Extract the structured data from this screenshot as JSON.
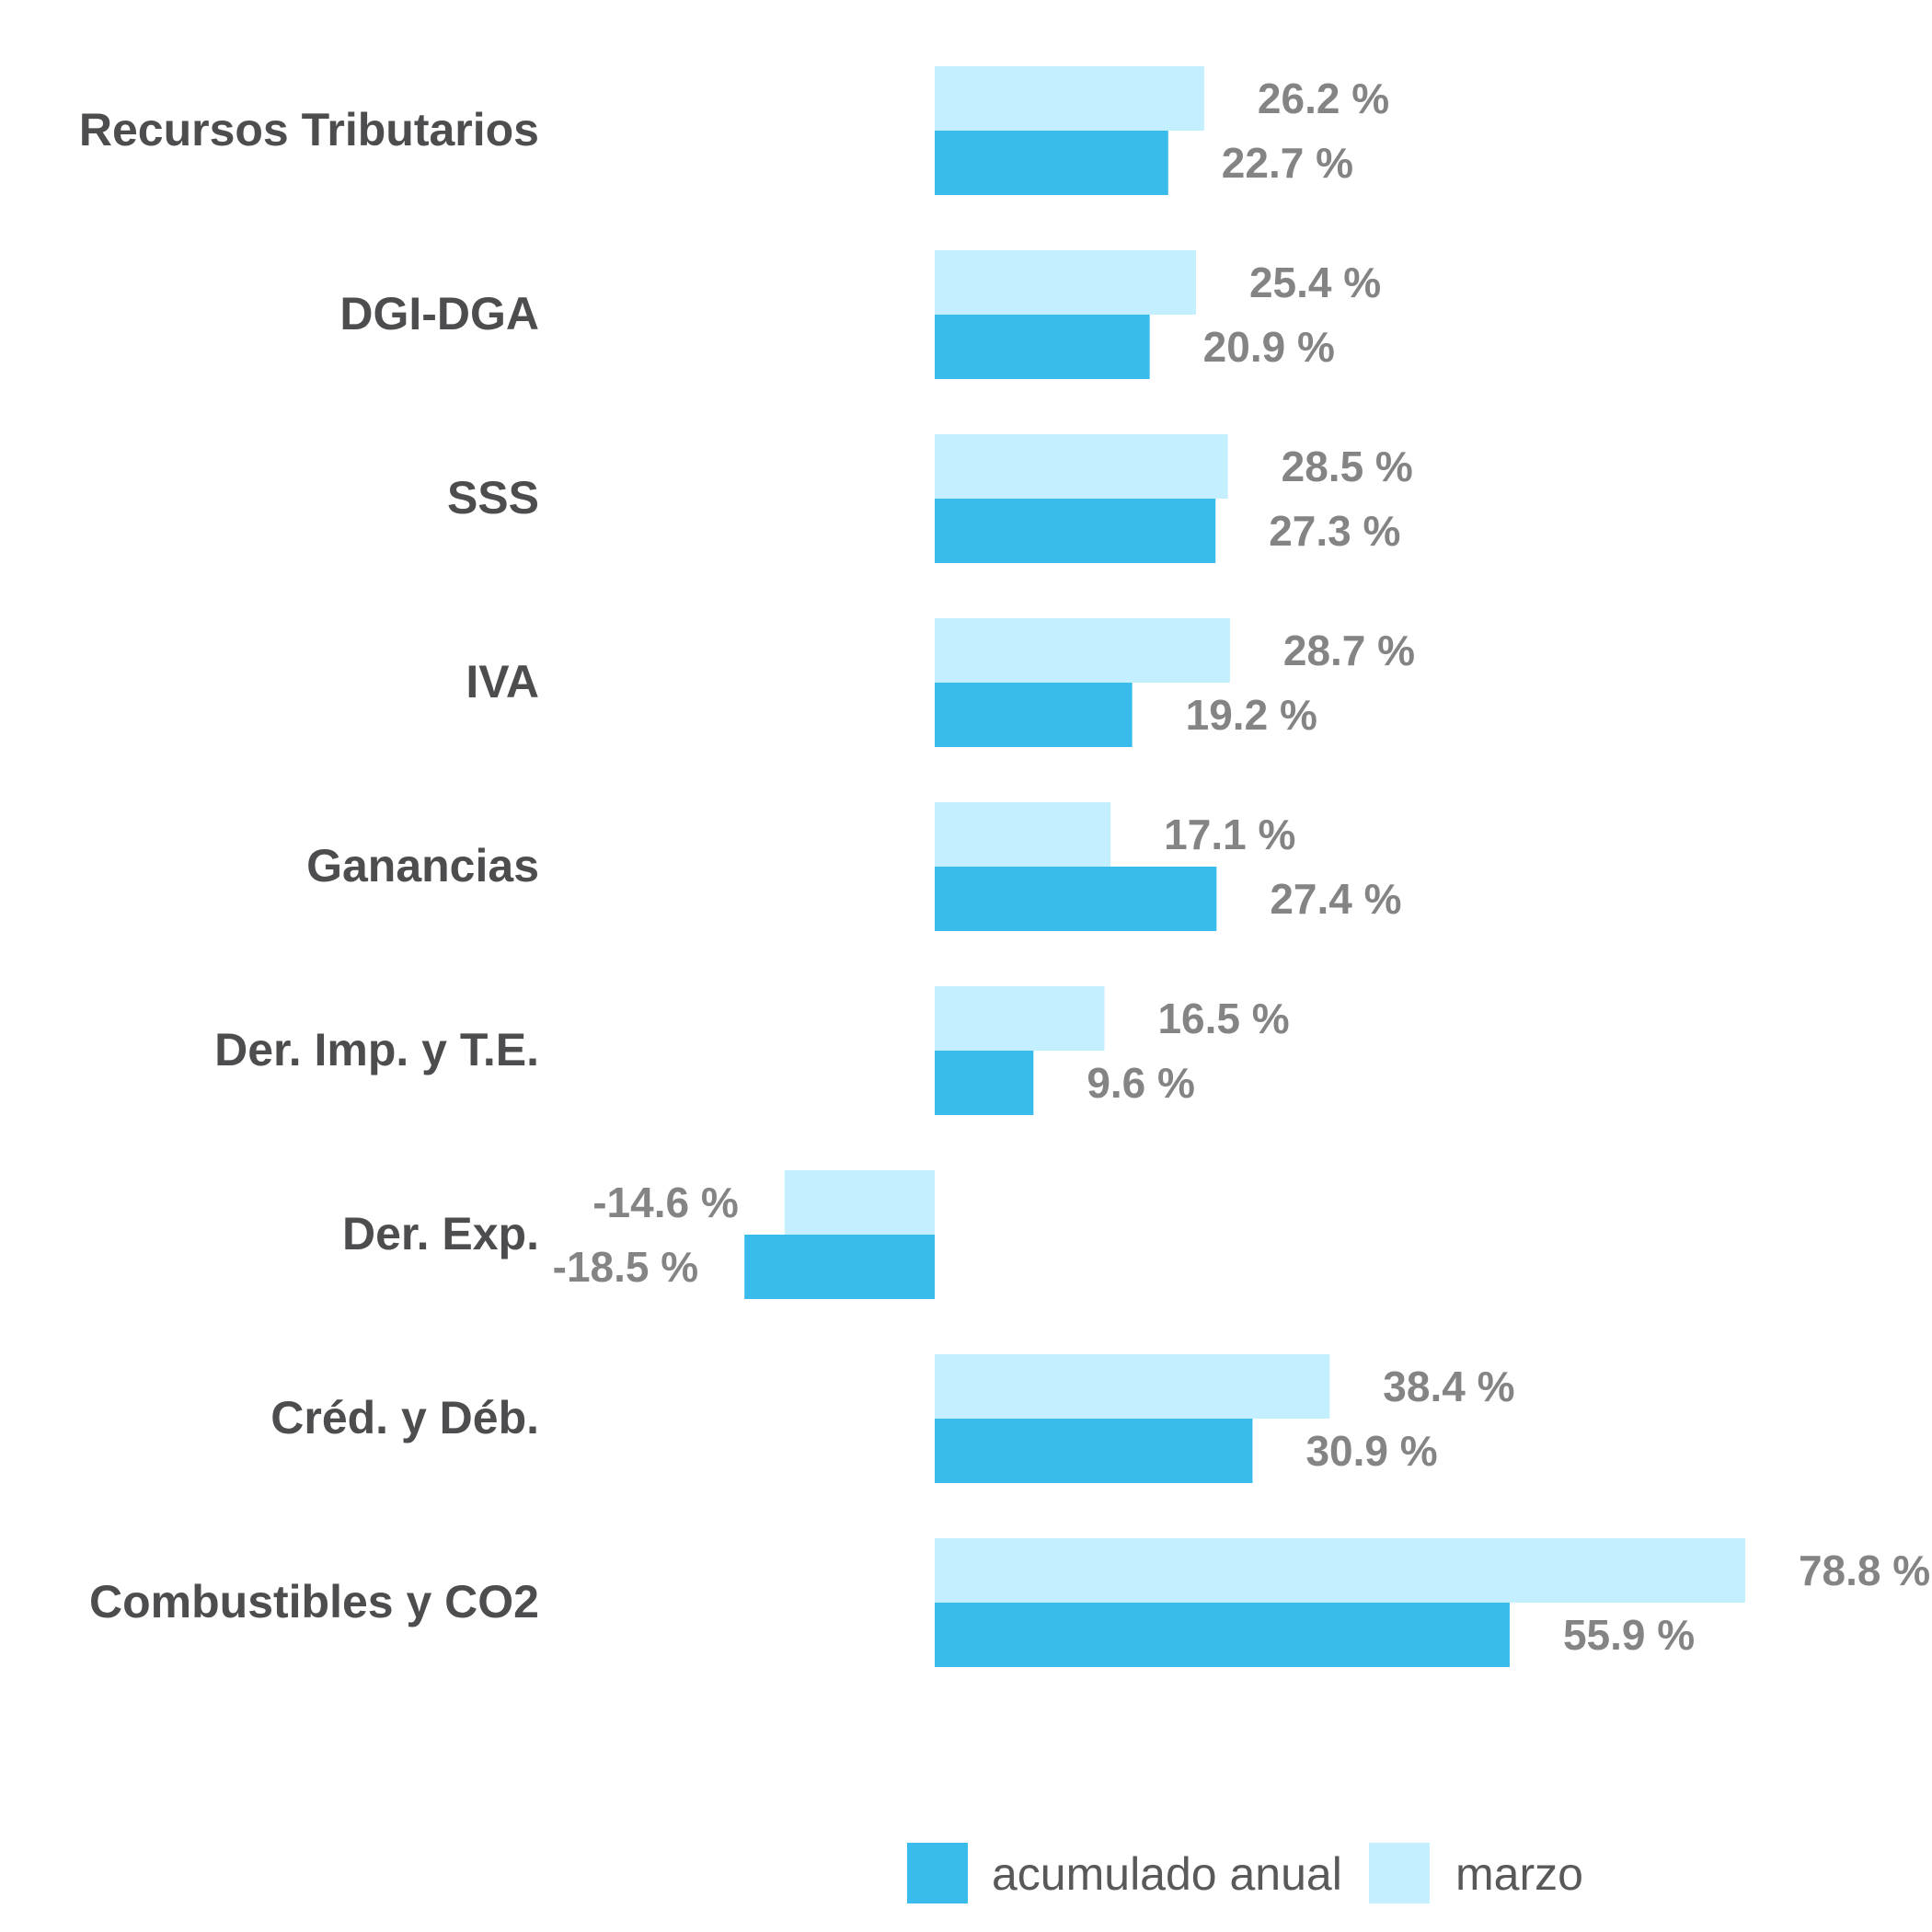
{
  "chart_data": {
    "type": "bar",
    "orientation": "horizontal",
    "categories": [
      "Recursos Tributarios",
      "DGI-DGA",
      "SSS",
      "IVA",
      "Ganancias",
      "Der. Imp. y T.E.",
      "Der. Exp.",
      "Créd. y Déb.",
      "Combustibles y CO2"
    ],
    "series": [
      {
        "name": "marzo",
        "color": "#c3efff",
        "values": [
          26.2,
          25.4,
          28.5,
          28.7,
          17.1,
          16.5,
          -14.6,
          38.4,
          78.8
        ],
        "labels": [
          "26.2 %",
          "25.4 %",
          "28.5 %",
          "28.7 %",
          "17.1 %",
          "16.5 %",
          "-14.6 %",
          "38.4 %",
          "78.8 %"
        ]
      },
      {
        "name": "acumulado anual",
        "color": "#39bcec",
        "values": [
          22.7,
          20.9,
          27.3,
          19.2,
          27.4,
          9.6,
          -18.5,
          30.9,
          55.9
        ],
        "labels": [
          "22.7 %",
          "20.9 %",
          "27.3 %",
          "19.2 %",
          "27.4 %",
          "9.6 %",
          "-18.5 %",
          "30.9 %",
          "55.9 %"
        ]
      }
    ],
    "legend": {
      "position": "bottom",
      "entries": [
        "acumulado anual",
        "marzo"
      ]
    },
    "grid": false
  }
}
